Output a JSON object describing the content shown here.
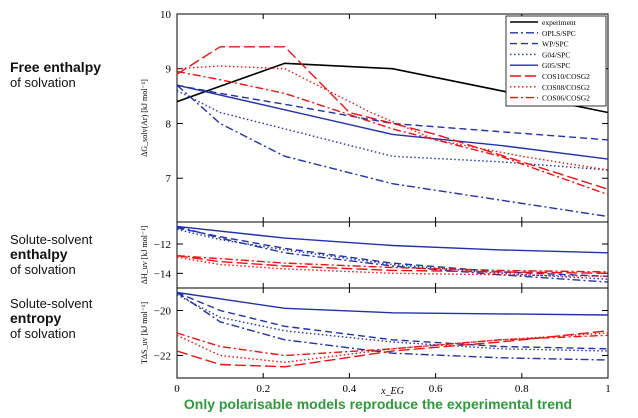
{
  "labels": {
    "free": {
      "line1": "Free enthalpy",
      "line2": "of solvation"
    },
    "enthalpy": {
      "line1": "Solute-solvent",
      "line2": "enthalpy",
      "line3": "of solvation"
    },
    "entropy": {
      "line1": "Solute-solvent",
      "line2": "entropy",
      "line3": "of solvation"
    }
  },
  "footer": "Only polarisable models reproduce the experimental trend",
  "chart_data": {
    "type": "line",
    "xlabel": "x_EG",
    "xlim": [
      0,
      1
    ],
    "xticks": [
      "0",
      "0.2",
      "0.4",
      "0.6",
      "0.8",
      "1"
    ],
    "legend": {
      "placement": "top-right",
      "entries": [
        {
          "name": "experiment",
          "color": "#000000",
          "dash": "solid"
        },
        {
          "name": "OPLS/SPC",
          "color": "#2233aa",
          "dash": "dashdot"
        },
        {
          "name": "WP/SPC",
          "color": "#2233aa",
          "dash": "dashed"
        },
        {
          "name": "G04/SPC",
          "color": "#2233aa",
          "dash": "dotted"
        },
        {
          "name": "G05/SPC",
          "color": "#2233aa",
          "dash": "solid"
        },
        {
          "name": "COS10/COSG2",
          "color": "#ee1111",
          "dash": "longdash"
        },
        {
          "name": "COS08/COSG2",
          "color": "#ee1111",
          "dash": "dotted"
        },
        {
          "name": "COS06/COSG2",
          "color": "#ee1111",
          "dash": "dashdot"
        }
      ]
    },
    "panels": [
      {
        "id": "free",
        "ylabel": "ΔG_solv(Ar) [kJ mol⁻¹]",
        "ylim": [
          6.2,
          10
        ],
        "yticks": [
          7,
          8,
          9,
          10
        ],
        "series": [
          {
            "name": "experiment",
            "x": [
              0,
              0.25,
              0.5,
              1
            ],
            "y": [
              8.4,
              9.1,
              9.0,
              8.2
            ]
          },
          {
            "name": "OPLS/SPC",
            "x": [
              0,
              0.1,
              0.25,
              0.5,
              0.75,
              1
            ],
            "y": [
              8.7,
              8.0,
              7.4,
              6.9,
              6.6,
              6.3
            ]
          },
          {
            "name": "WP/SPC",
            "x": [
              0,
              0.1,
              0.25,
              0.5,
              0.75,
              1
            ],
            "y": [
              8.7,
              8.55,
              8.35,
              8.0,
              7.85,
              7.7
            ]
          },
          {
            "name": "G04/SPC",
            "x": [
              0,
              0.1,
              0.25,
              0.5,
              0.75,
              1
            ],
            "y": [
              8.6,
              8.2,
              7.9,
              7.4,
              7.3,
              7.15
            ]
          },
          {
            "name": "G05/SPC",
            "x": [
              0,
              0.25,
              0.5,
              0.75,
              1
            ],
            "y": [
              8.7,
              8.25,
              7.8,
              7.6,
              7.35
            ]
          },
          {
            "name": "COS10/COSG2",
            "x": [
              0,
              0.1,
              0.25,
              0.4,
              0.6,
              0.8,
              1
            ],
            "y": [
              8.9,
              9.4,
              9.4,
              8.2,
              7.8,
              7.3,
              6.8
            ]
          },
          {
            "name": "COS08/COSG2",
            "x": [
              0,
              0.1,
              0.25,
              0.45,
              0.6,
              0.8,
              1
            ],
            "y": [
              9.0,
              9.05,
              9.0,
              8.2,
              7.7,
              7.4,
              7.15
            ]
          },
          {
            "name": "COS06/COSG2",
            "x": [
              0,
              0.1,
              0.25,
              0.5,
              0.75,
              1
            ],
            "y": [
              8.95,
              8.8,
              8.55,
              7.9,
              7.4,
              6.7
            ]
          }
        ]
      },
      {
        "id": "enthalpy",
        "ylabel": "ΔH_uv [kJ mol⁻¹]",
        "ylim": [
          -15,
          -10.5
        ],
        "yticks": [
          -12,
          -14
        ],
        "series": [
          {
            "name": "OPLS/SPC",
            "x": [
              0,
              0.1,
              0.25,
              0.5,
              0.75,
              1
            ],
            "y": [
              -10.8,
              -11.6,
              -12.6,
              -13.5,
              -14.1,
              -14.6
            ]
          },
          {
            "name": "WP/SPC",
            "x": [
              0,
              0.1,
              0.25,
              0.5,
              0.75,
              1
            ],
            "y": [
              -10.9,
              -11.5,
              -12.3,
              -13.3,
              -13.9,
              -14.2
            ]
          },
          {
            "name": "G04/SPC",
            "x": [
              0,
              0.1,
              0.25,
              0.5,
              0.75,
              1
            ],
            "y": [
              -11.0,
              -11.7,
              -12.4,
              -13.4,
              -14.0,
              -14.4
            ]
          },
          {
            "name": "G05/SPC",
            "x": [
              0,
              0.25,
              0.5,
              0.75,
              1
            ],
            "y": [
              -10.8,
              -11.6,
              -12.1,
              -12.4,
              -12.6
            ]
          },
          {
            "name": "COS10/COSG2",
            "x": [
              0,
              0.1,
              0.25,
              0.5,
              0.75,
              1
            ],
            "y": [
              -12.8,
              -13.2,
              -13.5,
              -13.8,
              -13.9,
              -14.0
            ]
          },
          {
            "name": "COS08/COSG2",
            "x": [
              0,
              0.1,
              0.25,
              0.5,
              0.75,
              1
            ],
            "y": [
              -12.9,
              -13.4,
              -13.7,
              -14.0,
              -14.1,
              -14.2
            ]
          },
          {
            "name": "COS06/COSG2",
            "x": [
              0,
              0.25,
              0.5,
              0.75,
              1
            ],
            "y": [
              -12.8,
              -13.3,
              -13.6,
              -13.8,
              -13.9
            ]
          }
        ]
      },
      {
        "id": "entropy",
        "ylabel": "TΔS_uv [kJ mol⁻¹]",
        "ylim": [
          -23,
          -19
        ],
        "yticks": [
          -20,
          -22
        ],
        "series": [
          {
            "name": "OPLS/SPC",
            "x": [
              0,
              0.1,
              0.25,
              0.5,
              0.75,
              1
            ],
            "y": [
              -19.2,
              -20.5,
              -21.3,
              -21.9,
              -22.1,
              -22.2
            ]
          },
          {
            "name": "WP/SPC",
            "x": [
              0,
              0.1,
              0.25,
              0.5,
              0.75,
              1
            ],
            "y": [
              -19.2,
              -20.0,
              -20.7,
              -21.3,
              -21.6,
              -21.7
            ]
          },
          {
            "name": "G04/SPC",
            "x": [
              0,
              0.1,
              0.25,
              0.5,
              0.75,
              1
            ],
            "y": [
              -19.3,
              -20.3,
              -20.9,
              -21.4,
              -21.7,
              -21.8
            ]
          },
          {
            "name": "G05/SPC",
            "x": [
              0,
              0.25,
              0.5,
              0.75,
              1
            ],
            "y": [
              -19.2,
              -19.9,
              -20.1,
              -20.15,
              -20.2
            ]
          },
          {
            "name": "COS10/COSG2",
            "x": [
              0,
              0.1,
              0.25,
              0.5,
              0.75,
              1
            ],
            "y": [
              -21.8,
              -22.4,
              -22.5,
              -21.8,
              -21.4,
              -20.9
            ]
          },
          {
            "name": "COS08/COSG2",
            "x": [
              0,
              0.1,
              0.25,
              0.5,
              0.75,
              1
            ],
            "y": [
              -21.1,
              -22.0,
              -22.3,
              -21.7,
              -21.3,
              -21.0
            ]
          },
          {
            "name": "COS06/COSG2",
            "x": [
              0,
              0.1,
              0.25,
              0.5,
              0.75,
              1
            ],
            "y": [
              -21.0,
              -21.6,
              -22.0,
              -21.7,
              -21.3,
              -21.1
            ]
          }
        ]
      }
    ]
  }
}
